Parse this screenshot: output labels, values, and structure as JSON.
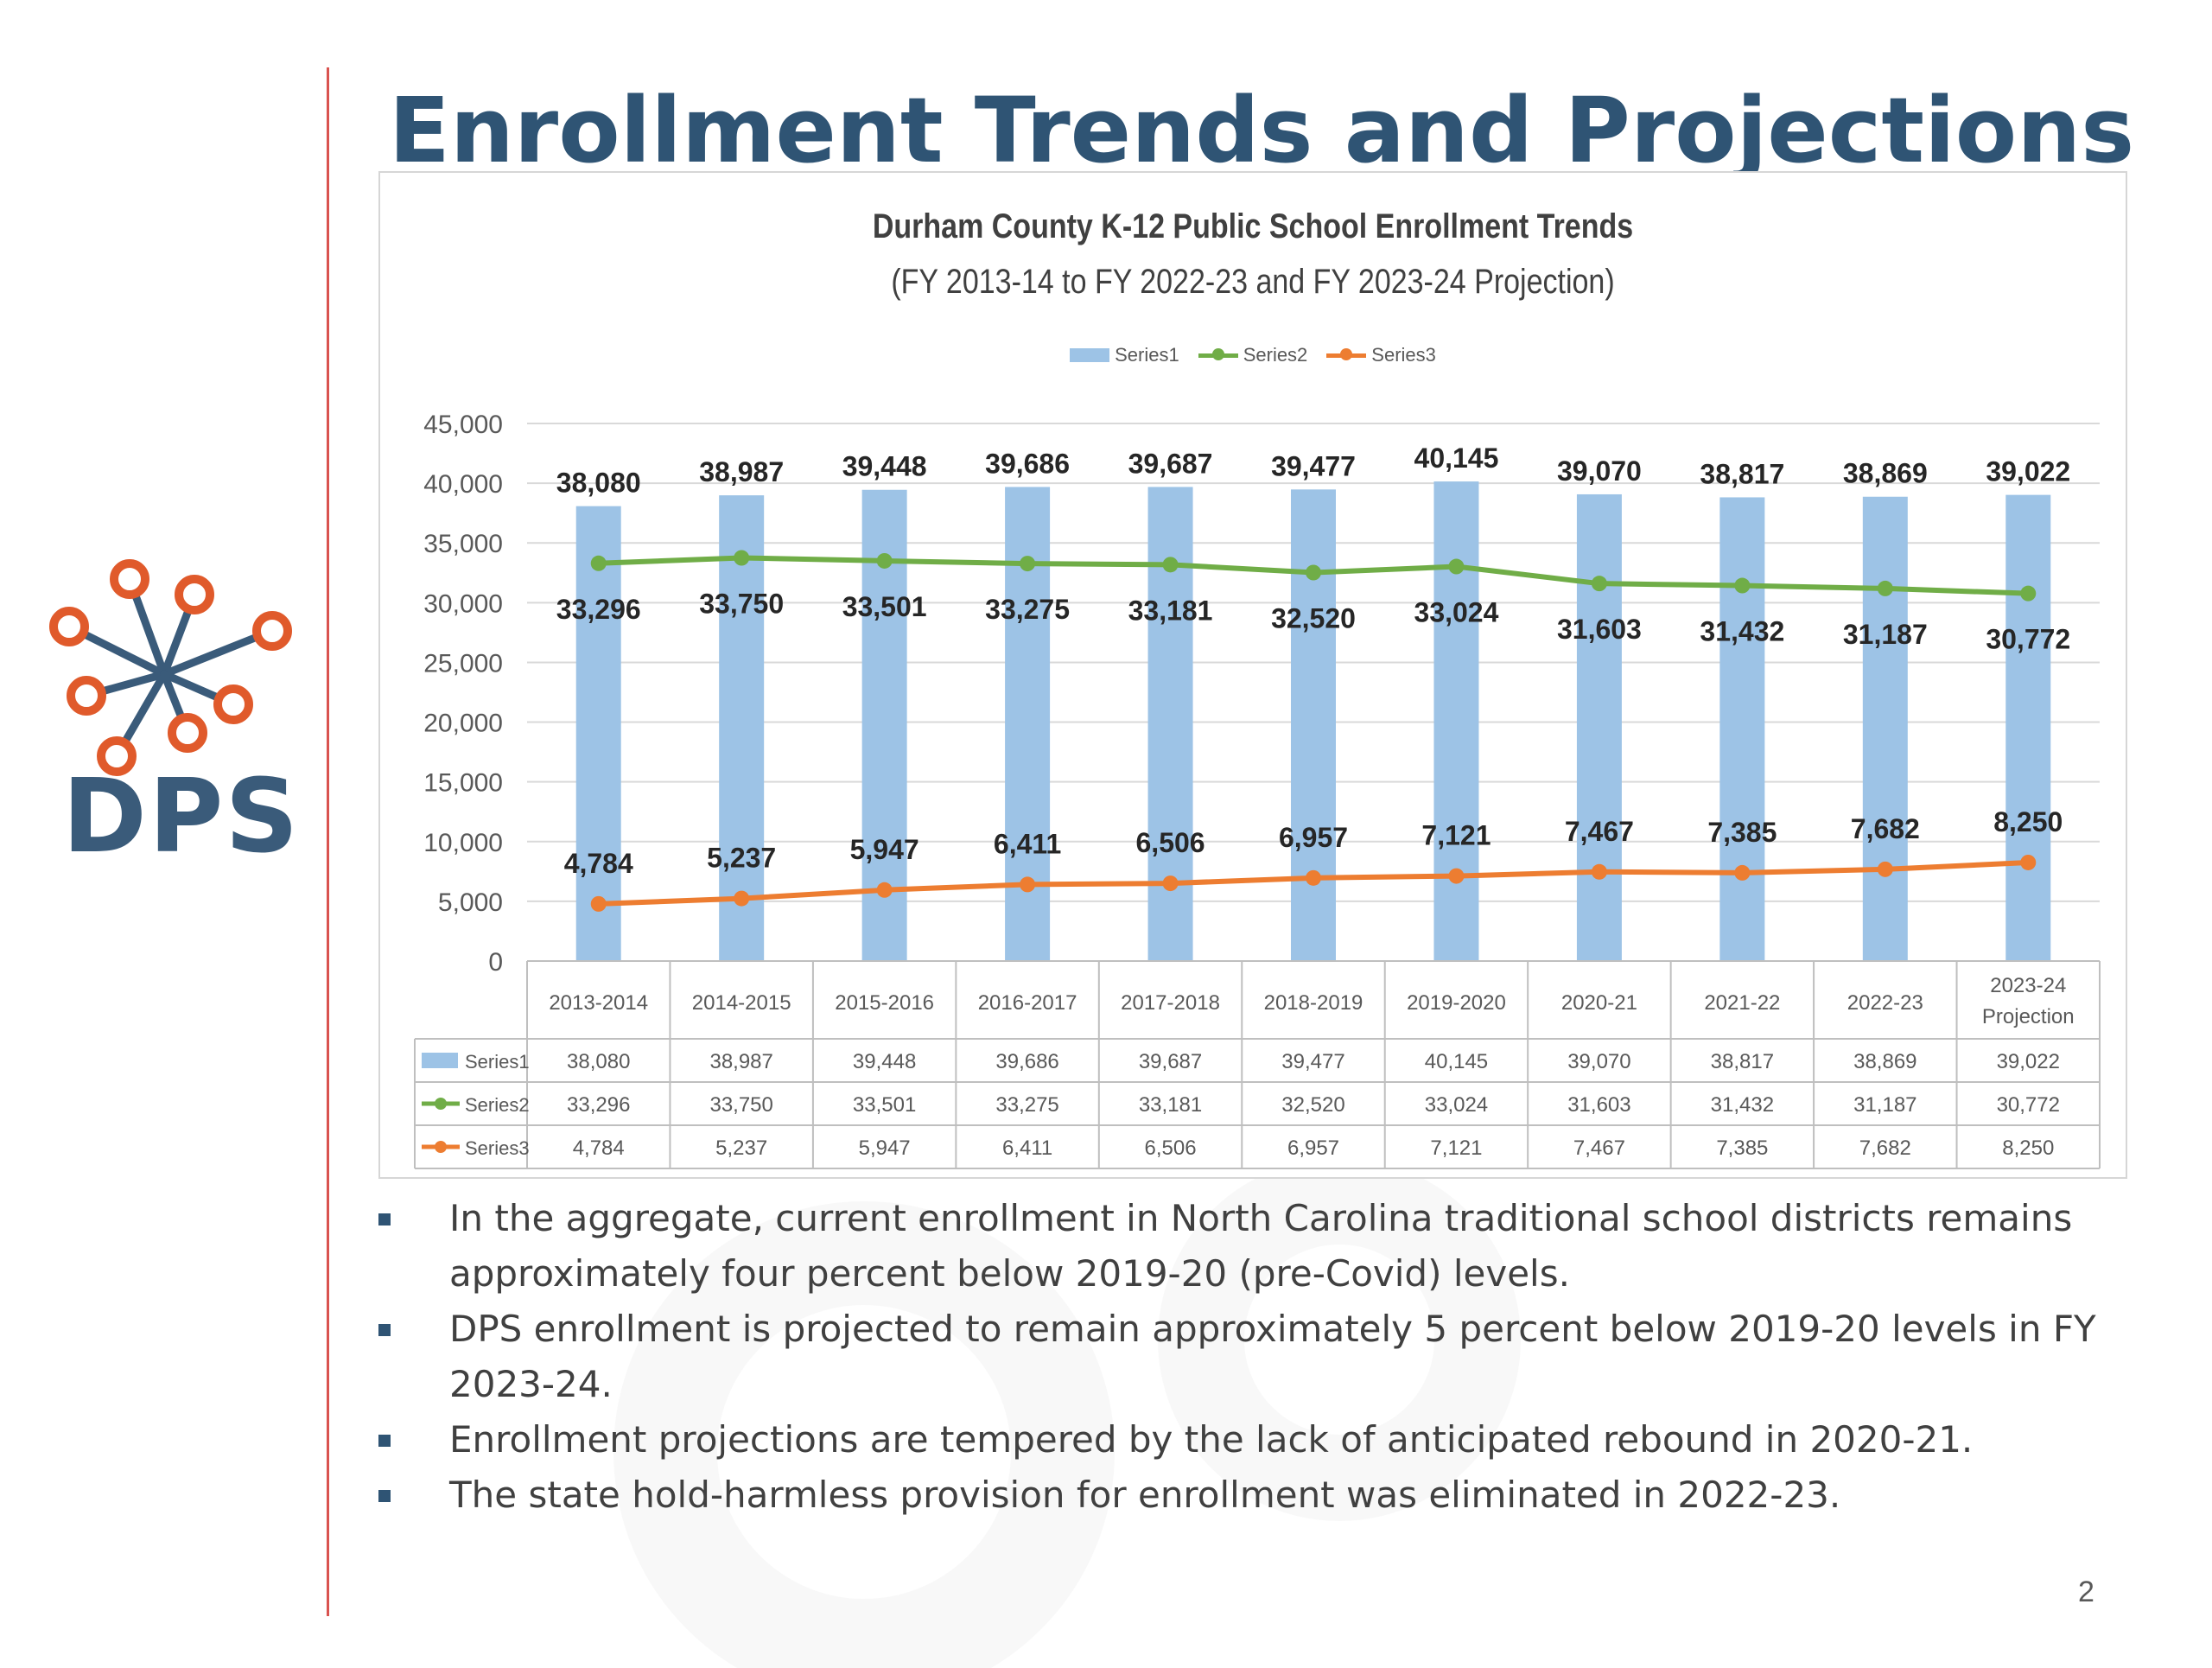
{
  "slide": {
    "title": "Enrollment Trends and Projections",
    "logo_text": "DPS",
    "page_number": "2",
    "bullets": [
      "In the aggregate, current enrollment in North Carolina traditional school districts remains approximately four percent below 2019-20 (pre-Covid) levels.",
      "DPS enrollment is projected to remain approximately 5 percent below 2019-20 levels in FY 2023-24.",
      "Enrollment projections are tempered by the lack of anticipated rebound in 2020-21.",
      "The state hold-harmless provision for enrollment was eliminated in 2022-23."
    ],
    "colors": {
      "title": "#2f5474",
      "divider": "#d9534f",
      "logo_orange": "#e05a2b",
      "logo_blue": "#3a5b7a"
    }
  },
  "chart_data": {
    "type": "bar",
    "title": "Durham County K-12 Public School Enrollment Trends",
    "subtitle": "(FY 2013-14 to FY 2022-23 and FY 2023-24 Projection)",
    "categories": [
      "2013-2014",
      "2014-2015",
      "2015-2016",
      "2016-2017",
      "2017-2018",
      "2018-2019",
      "2019-2020",
      "2020-21",
      "2021-22",
      "2022-23",
      "2023-24 Projection"
    ],
    "ylim": [
      0,
      45000
    ],
    "yticks": [
      "0",
      "5,000",
      "10,000",
      "15,000",
      "20,000",
      "25,000",
      "30,000",
      "35,000",
      "40,000",
      "45,000"
    ],
    "grid": true,
    "legend_position": "top",
    "data_table": true,
    "series": [
      {
        "name": "Series1",
        "type": "bar",
        "color": "#9dc3e6",
        "values": [
          38080,
          38987,
          39448,
          39686,
          39687,
          39477,
          40145,
          39070,
          38817,
          38869,
          39022
        ],
        "labels": [
          "38,080",
          "38,987",
          "39,448",
          "39,686",
          "39,687",
          "39,477",
          "40,145",
          "39,070",
          "38,817",
          "38,869",
          "39,022"
        ]
      },
      {
        "name": "Series2",
        "type": "line",
        "color": "#70ad47",
        "values": [
          33296,
          33750,
          33501,
          33275,
          33181,
          32520,
          33024,
          31603,
          31432,
          31187,
          30772
        ],
        "labels": [
          "33,296",
          "33,750",
          "33,501",
          "33,275",
          "33,181",
          "32,520",
          "33,024",
          "31,603",
          "31,432",
          "31,187",
          "30,772"
        ]
      },
      {
        "name": "Series3",
        "type": "line",
        "color": "#ed7d31",
        "values": [
          4784,
          5237,
          5947,
          6411,
          6506,
          6957,
          7121,
          7467,
          7385,
          7682,
          8250
        ],
        "labels": [
          "4,784",
          "5,237",
          "5,947",
          "6,411",
          "6,506",
          "6,957",
          "7,121",
          "7,467",
          "7,385",
          "7,682",
          "8,250"
        ]
      }
    ]
  }
}
